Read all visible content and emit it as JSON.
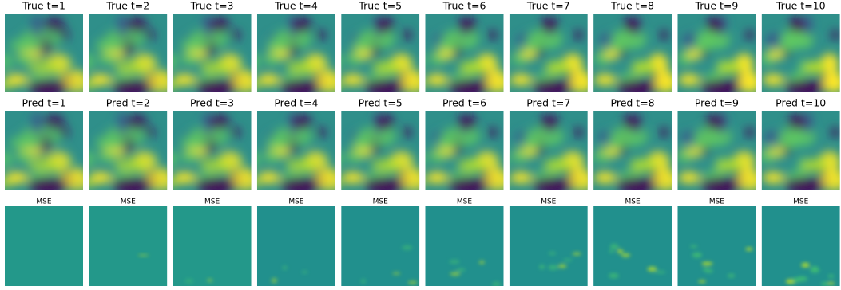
{
  "rows": [
    {
      "panels": [
        "True t=1",
        "True t=2",
        "True t=3",
        "True t=4",
        "True t=5",
        "True t=6",
        "True t=7",
        "True t=8",
        "True t=9",
        "True t=10"
      ]
    },
    {
      "panels": [
        "Pred t=1",
        "Pred t=2",
        "Pred t=3",
        "Pred t=4",
        "Pred t=5",
        "Pred t=6",
        "Pred t=7",
        "Pred t=8",
        "Pred t=9",
        "Pred t=10"
      ]
    },
    {
      "panels": [
        "MSE",
        "MSE",
        "MSE",
        "MSE",
        "MSE",
        "MSE",
        "MSE",
        "MSE",
        "MSE",
        "MSE"
      ]
    }
  ]
}
